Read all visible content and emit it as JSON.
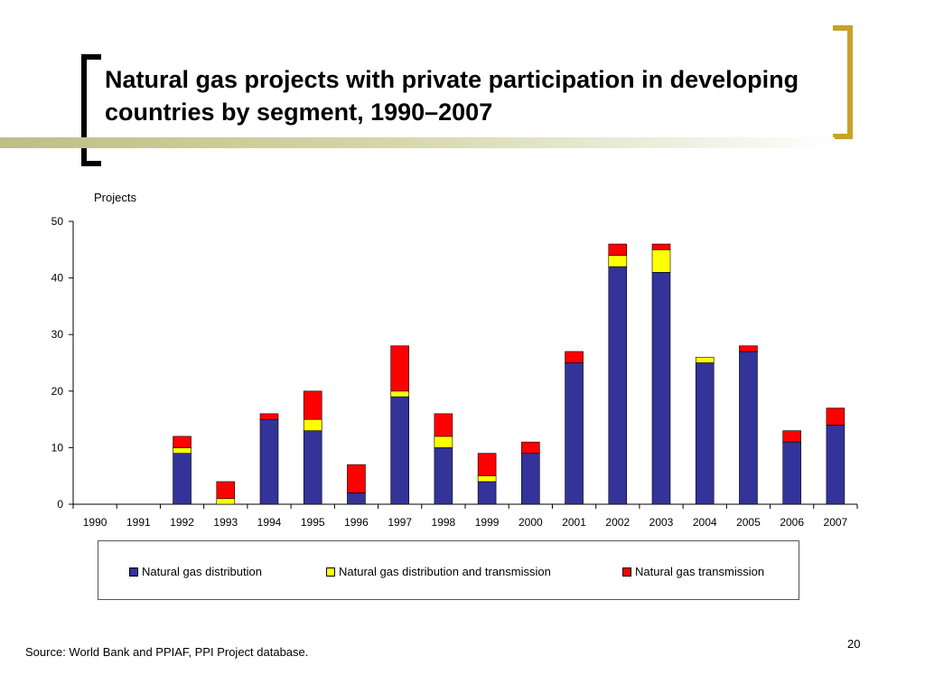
{
  "slide": {
    "title": "Natural gas projects with private participation in developing countries by segment, 1990–2007",
    "source": "Source: World Bank and PPIAF, PPI Project database.",
    "page_number": "20"
  },
  "colors": {
    "distribution": "#333399",
    "dist_transmission": "#ffff00",
    "transmission": "#ff0000",
    "bracket_left": "#000000",
    "bracket_right": "#c9a227"
  },
  "chart_data": {
    "type": "bar",
    "stacked": true,
    "title": "",
    "xlabel": "",
    "ylabel": "Projects",
    "ylim": [
      0,
      50
    ],
    "yticks": [
      0,
      10,
      20,
      30,
      40,
      50
    ],
    "grid": false,
    "legend_position": "bottom",
    "categories": [
      "1990",
      "1991",
      "1992",
      "1993",
      "1994",
      "1995",
      "1996",
      "1997",
      "1998",
      "1999",
      "2000",
      "2001",
      "2002",
      "2003",
      "2004",
      "2005",
      "2006",
      "2007"
    ],
    "series": [
      {
        "name": "Natural gas distribution",
        "color_key": "distribution",
        "values": [
          0,
          0,
          9,
          0,
          15,
          13,
          2,
          19,
          10,
          4,
          9,
          25,
          42,
          41,
          25,
          27,
          11,
          14
        ]
      },
      {
        "name": "Natural gas distribution and transmission",
        "color_key": "dist_transmission",
        "values": [
          0,
          0,
          1,
          1,
          0,
          2,
          0,
          1,
          2,
          1,
          0,
          0,
          2,
          4,
          1,
          0,
          0,
          0
        ]
      },
      {
        "name": "Natural gas transmission",
        "color_key": "transmission",
        "values": [
          0,
          0,
          2,
          3,
          1,
          5,
          5,
          8,
          4,
          4,
          2,
          2,
          2,
          1,
          0,
          1,
          2,
          3
        ]
      }
    ]
  }
}
